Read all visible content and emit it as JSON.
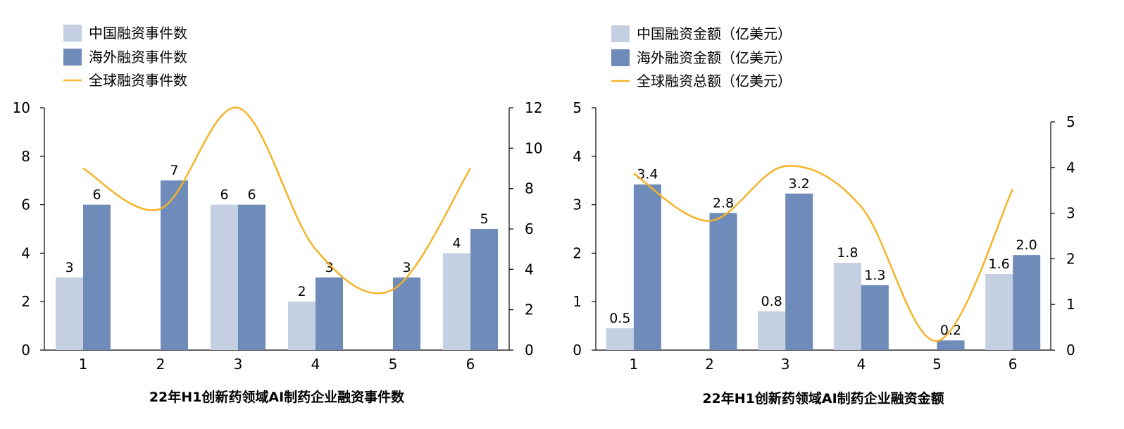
{
  "colors": {
    "china": "#c4cfe2",
    "overseas": "#6e8bb9",
    "global": "#f5b329",
    "axis": "#000000"
  },
  "chart_data": [
    {
      "type": "bar",
      "title": "22年H1创新药领域AI制药企业融资事件数",
      "categories": [
        "1",
        "2",
        "3",
        "4",
        "5",
        "6"
      ],
      "series": [
        {
          "name": "中国融资事件数",
          "kind": "bar",
          "axis": "left",
          "values": [
            3,
            0,
            6,
            2,
            0,
            4
          ],
          "labels": [
            "3",
            "",
            "6",
            "2",
            "",
            "4"
          ]
        },
        {
          "name": "海外融资事件数",
          "kind": "bar",
          "axis": "left",
          "values": [
            6,
            7,
            6,
            3,
            3,
            5
          ],
          "labels": [
            "6",
            "7",
            "6",
            "3",
            "3",
            "5"
          ]
        },
        {
          "name": "全球融资事件数",
          "kind": "line",
          "axis": "right",
          "smooth": true,
          "values": [
            9,
            7,
            12,
            5,
            3,
            9
          ]
        }
      ],
      "ylim_left": [
        0,
        10
      ],
      "yticks_left": [
        "0",
        "2",
        "4",
        "6",
        "8",
        "10"
      ],
      "ylim_right": [
        0,
        12
      ],
      "yticks_right": [
        "0",
        "2",
        "4",
        "6",
        "8",
        "10",
        "12"
      ],
      "legend": "top-left",
      "grid": false
    },
    {
      "type": "bar",
      "title": "22年H1创新药领域AI制药企业融资金额",
      "categories": [
        "1",
        "2",
        "3",
        "4",
        "5",
        "6"
      ],
      "series": [
        {
          "name": "中国融资金额（亿美元）",
          "kind": "bar",
          "axis": "left",
          "values": [
            0.45,
            0,
            0.8,
            1.8,
            0,
            1.57
          ],
          "labels": [
            "0.5",
            "",
            "0.8",
            "1.8",
            "",
            "1.6"
          ]
        },
        {
          "name": "海外融资金额（亿美元）",
          "kind": "bar",
          "axis": "left",
          "values": [
            3.42,
            2.83,
            3.23,
            1.34,
            0.2,
            1.96
          ],
          "labels": [
            "3.4",
            "2.8",
            "3.2",
            "1.3",
            "0.2",
            "2.0"
          ]
        },
        {
          "name": "全球融资总额（亿美元）",
          "kind": "line",
          "axis": "right",
          "smooth": true,
          "values": [
            3.87,
            2.83,
            4.03,
            3.14,
            0.2,
            3.53
          ]
        }
      ],
      "ylim_left": [
        0,
        5
      ],
      "yticks_left": [
        "0",
        "1",
        "2",
        "3",
        "4",
        "5"
      ],
      "ylim_right": [
        0,
        5
      ],
      "yticks_right": [
        "0",
        "1",
        "2",
        "3",
        "4",
        "5"
      ],
      "legend": "top-left",
      "grid": false
    }
  ]
}
